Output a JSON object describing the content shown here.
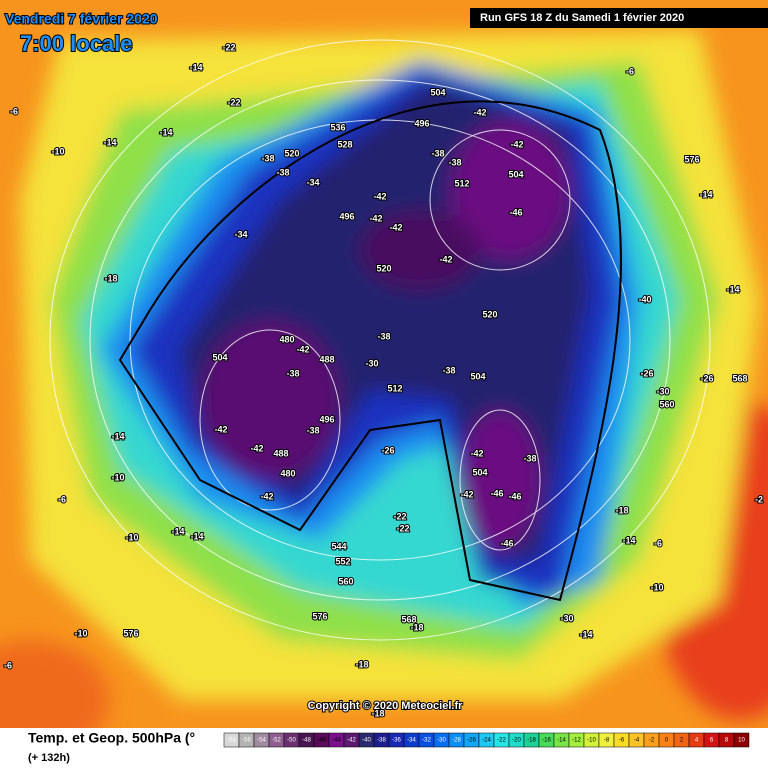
{
  "header": {
    "date": "Vendredi 7 février 2020",
    "time": "7:00 locale",
    "run": "Run GFS 18 Z du Samedi 1 février 2020"
  },
  "copyright": "Copyright © 2020 Meteociel.fr",
  "footer": {
    "title": "Temp. et Geop. 500hPa (°",
    "lead": "(+ 132h)"
  },
  "colorbar": {
    "ticks": [
      -58,
      -56,
      -54,
      -52,
      -50,
      -48,
      -46,
      -44,
      -42,
      -40,
      -38,
      -36,
      -34,
      -32,
      -30,
      -28,
      -26,
      -24,
      -22,
      -20,
      -18,
      -16,
      -14,
      -12,
      -10,
      -8,
      -6,
      -4,
      -2,
      0,
      2,
      4,
      6,
      8,
      10
    ]
  },
  "map_labels": [
    "-6",
    "-10",
    "-14",
    "-22",
    "-14",
    "-22",
    "536",
    "528",
    "520",
    "-38",
    "-38",
    "-34",
    "504",
    "496",
    "-42",
    "-38",
    "-38",
    "-42",
    "504",
    "512",
    "-46",
    "-42",
    "496",
    "-42",
    "-42",
    "520",
    "-42",
    "-34",
    "-18",
    "520",
    "-40",
    "-14",
    "480",
    "-42",
    "488",
    "504",
    "-38",
    "-38",
    "-30",
    "512",
    "-38",
    "504",
    "-26",
    "-30",
    "560",
    "-26",
    "568",
    "-42",
    "496",
    "-38",
    "-42",
    "488",
    "480",
    "-42",
    "-26",
    "-42",
    "-38",
    "504",
    "-46",
    "-46",
    "-42",
    "-46",
    "-14",
    "-10",
    "-6",
    "-10",
    "-14",
    "-14",
    "544",
    "552",
    "560",
    "-22",
    "-22",
    "576",
    "568",
    "-18",
    "-18",
    "576",
    "-10",
    "-30",
    "-14",
    "-18",
    "-14",
    "-10",
    "-6",
    "-2",
    "-6",
    "576",
    "-14",
    "-6",
    "-18",
    "-14"
  ]
}
